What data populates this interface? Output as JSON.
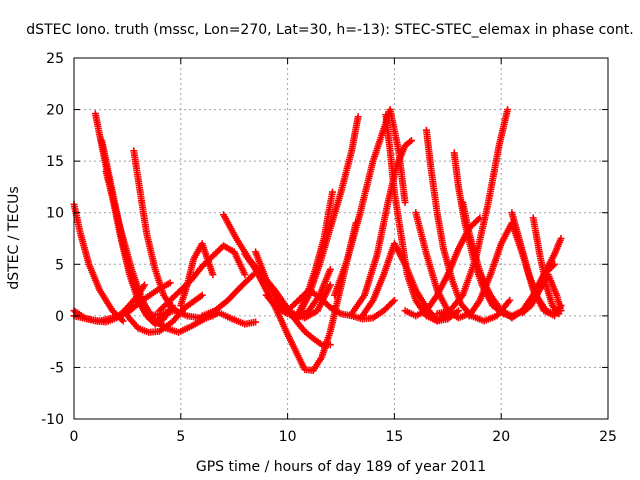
{
  "chart_data": {
    "type": "scatter",
    "title": "dSTEC Iono. truth (mssc, Lon=270, Lat=30, h=-13): STEC-STEC_elemax in phase cont.",
    "xlabel": "GPS time / hours of day 189 of year 2011",
    "ylabel": "dSTEC  / TECUs",
    "xlim": [
      0,
      25
    ],
    "ylim": [
      -10,
      25
    ],
    "xticks": [
      0,
      5,
      10,
      15,
      20,
      25
    ],
    "yticks": [
      -10,
      -5,
      0,
      5,
      10,
      15,
      20,
      25
    ],
    "grid": true,
    "marker": "+",
    "color": "#ff0000",
    "series": [
      {
        "x": [
          0.0,
          0.3,
          0.7,
          1.2,
          1.8,
          2.3
        ],
        "y": [
          10.8,
          8.0,
          5.0,
          2.5,
          0.5,
          -0.5
        ]
      },
      {
        "x": [
          0.0,
          0.5,
          1.0,
          1.5,
          2.0,
          2.5,
          3.0,
          3.3
        ],
        "y": [
          0.5,
          -0.2,
          -0.5,
          -0.6,
          -0.2,
          0.8,
          2.0,
          3.0
        ]
      },
      {
        "x": [
          0.0,
          0.6,
          1.2,
          1.8,
          2.5,
          3.2,
          3.9,
          4.5
        ],
        "y": [
          0.0,
          -0.3,
          -0.5,
          -0.2,
          0.3,
          1.5,
          2.5,
          3.2
        ]
      },
      {
        "x": [
          1.0,
          1.4,
          1.8,
          2.2,
          2.6,
          3.0,
          3.4,
          3.8,
          4.2,
          4.6
        ],
        "y": [
          19.6,
          15.5,
          11.5,
          7.5,
          4.0,
          1.5,
          0.0,
          -0.8,
          -0.3,
          1.0
        ]
      },
      {
        "x": [
          1.3,
          1.8,
          2.3,
          2.8,
          3.3,
          3.8,
          4.3
        ],
        "y": [
          17.0,
          12.0,
          7.0,
          3.0,
          0.5,
          -0.6,
          0.2
        ]
      },
      {
        "x": [
          1.5,
          2.1,
          2.7,
          3.2,
          3.7,
          4.2
        ],
        "y": [
          14.0,
          9.0,
          4.5,
          1.5,
          -0.3,
          -1.0
        ]
      },
      {
        "x": [
          2.5,
          3.0,
          3.5,
          4.0,
          4.6,
          5.2,
          6.0
        ],
        "y": [
          0.0,
          -1.2,
          -1.6,
          -1.5,
          -0.6,
          0.8,
          2.0
        ]
      },
      {
        "x": [
          2.8,
          3.1,
          3.4,
          3.8,
          4.2,
          4.6,
          5.0
        ],
        "y": [
          16.0,
          12.0,
          8.0,
          4.5,
          2.0,
          0.8,
          0.2
        ]
      },
      {
        "x": [
          3.4,
          3.8,
          4.3,
          4.9,
          5.5,
          6.1,
          6.8,
          7.4,
          8.0,
          8.5
        ],
        "y": [
          0.3,
          -0.5,
          -1.2,
          -1.6,
          -1.0,
          -0.3,
          0.3,
          -0.3,
          -0.8,
          -0.6
        ]
      },
      {
        "x": [
          3.5,
          4.1,
          4.7,
          5.3,
          5.9,
          6.5
        ],
        "y": [
          0.0,
          0.2,
          0.5,
          0.0,
          -0.2,
          0.0
        ]
      },
      {
        "x": [
          4.0,
          4.5,
          5.0,
          5.5,
          6.0,
          6.5,
          7.0,
          7.5,
          8.0
        ],
        "y": [
          0.5,
          1.5,
          2.5,
          3.5,
          4.8,
          5.8,
          6.8,
          6.2,
          4.0
        ]
      },
      {
        "x": [
          5.0,
          5.3,
          5.6,
          6.0,
          6.5
        ],
        "y": [
          1.0,
          3.0,
          5.5,
          7.0,
          4.0
        ]
      },
      {
        "x": [
          6.0,
          6.6,
          7.2,
          7.8,
          8.4
        ],
        "y": [
          0.0,
          0.5,
          1.5,
          2.8,
          4.0
        ]
      },
      {
        "x": [
          7.0,
          7.6,
          8.2,
          8.8,
          9.4,
          9.9,
          10.4,
          10.8,
          11.2,
          11.6,
          12.0
        ],
        "y": [
          9.8,
          7.5,
          5.5,
          4.0,
          2.5,
          1.0,
          -0.5,
          -1.5,
          -2.2,
          -2.8,
          -2.8
        ]
      },
      {
        "x": [
          8.0,
          8.5,
          9.0,
          9.5,
          10.0,
          10.4,
          10.8,
          11.2,
          11.6,
          12.0,
          12.4,
          12.8,
          13.2
        ],
        "y": [
          6.0,
          4.5,
          2.5,
          0.5,
          -1.8,
          -3.5,
          -5.2,
          -5.3,
          -4.0,
          -1.5,
          2.0,
          5.5,
          9.0
        ]
      },
      {
        "x": [
          8.5,
          9.0,
          9.6,
          10.2,
          10.8,
          11.4,
          12.0
        ],
        "y": [
          6.2,
          3.5,
          1.2,
          0.3,
          -0.2,
          0.5,
          3.0
        ]
      },
      {
        "x": [
          9.0,
          9.5,
          10.0,
          10.5,
          11.0,
          11.5,
          12.0
        ],
        "y": [
          2.0,
          0.8,
          0.2,
          -0.2,
          0.5,
          2.0,
          4.5
        ]
      },
      {
        "x": [
          10.0,
          10.5,
          11.0,
          11.5,
          12.0,
          12.5,
          13.0,
          13.5,
          14.0,
          14.5,
          15.0
        ],
        "y": [
          0.5,
          1.5,
          2.5,
          1.8,
          0.8,
          0.2,
          0.0,
          -0.3,
          -0.2,
          0.5,
          1.5
        ]
      },
      {
        "x": [
          10.5,
          10.9,
          11.3,
          11.7,
          12.1
        ],
        "y": [
          0.2,
          2.0,
          4.5,
          7.5,
          12.0
        ]
      },
      {
        "x": [
          10.5,
          11.0,
          11.5,
          12.0,
          12.5,
          13.0,
          13.3
        ],
        "y": [
          0.0,
          2.0,
          5.0,
          8.5,
          12.0,
          16.0,
          19.3
        ]
      },
      {
        "x": [
          12.2,
          12.8,
          13.4,
          14.0,
          14.4,
          14.8,
          15.2,
          15.5
        ],
        "y": [
          2.0,
          5.5,
          10.0,
          15.0,
          17.5,
          20.0,
          16.0,
          11.0
        ]
      },
      {
        "x": [
          13.0,
          13.6,
          14.2,
          14.7,
          15.1,
          15.5,
          15.8
        ],
        "y": [
          0.2,
          2.0,
          6.0,
          11.0,
          14.5,
          16.5,
          17.0
        ]
      },
      {
        "x": [
          13.5,
          14.0,
          14.5,
          15.0,
          15.5,
          16.0,
          16.5,
          17.0,
          17.5,
          18.0
        ],
        "y": [
          0.0,
          1.5,
          4.0,
          7.0,
          5.0,
          2.5,
          0.8,
          -0.5,
          -0.3,
          0.5
        ]
      },
      {
        "x": [
          14.6,
          14.8,
          15.0,
          15.3,
          15.6,
          16.0,
          16.5,
          17.0,
          17.5
        ],
        "y": [
          19.5,
          16.0,
          12.0,
          8.0,
          4.0,
          1.5,
          0.0,
          -0.5,
          0.3
        ]
      },
      {
        "x": [
          15.5,
          16.0,
          16.5,
          17.0,
          17.5,
          18.0,
          18.5,
          19.0
        ],
        "y": [
          0.5,
          0.0,
          0.5,
          2.0,
          4.0,
          6.5,
          8.5,
          9.5
        ]
      },
      {
        "x": [
          16.0,
          16.5,
          17.0,
          17.5,
          18.0,
          18.5
        ],
        "y": [
          10.0,
          6.0,
          2.5,
          0.5,
          -0.2,
          0.2
        ]
      },
      {
        "x": [
          16.5,
          16.7,
          17.0,
          17.3,
          17.7,
          18.1,
          18.6,
          19.2,
          19.8,
          20.4
        ],
        "y": [
          18.0,
          14.5,
          10.0,
          6.5,
          3.5,
          1.2,
          0.0,
          -0.5,
          0.0,
          1.5
        ]
      },
      {
        "x": [
          17.8,
          18.0,
          18.3,
          18.7,
          19.1,
          19.6,
          20.1
        ],
        "y": [
          15.8,
          12.5,
          9.0,
          5.5,
          3.0,
          1.0,
          0.2
        ]
      },
      {
        "x": [
          17.0,
          17.6,
          18.2,
          18.8,
          19.4,
          19.9,
          20.3
        ],
        "y": [
          0.2,
          0.5,
          2.0,
          5.5,
          11.0,
          16.5,
          20.0
        ]
      },
      {
        "x": [
          18.2,
          18.5,
          18.9,
          19.3,
          19.7,
          20.1,
          20.5
        ],
        "y": [
          11.0,
          8.0,
          5.0,
          2.5,
          1.0,
          0.2,
          0.0
        ]
      },
      {
        "x": [
          18.5,
          19.0,
          19.5,
          20.0,
          20.5,
          21.0,
          21.5,
          22.0,
          22.5
        ],
        "y": [
          0.0,
          1.5,
          4.0,
          7.0,
          9.0,
          6.0,
          2.5,
          0.5,
          0.0
        ]
      },
      {
        "x": [
          19.0,
          19.5,
          20.0,
          20.5,
          21.0,
          21.5,
          22.0,
          22.5
        ],
        "y": [
          4.0,
          2.0,
          0.5,
          -0.2,
          0.5,
          2.0,
          4.0,
          5.0
        ]
      },
      {
        "x": [
          20.0,
          20.5,
          21.0,
          21.5,
          22.0,
          22.5,
          22.8
        ],
        "y": [
          0.5,
          0.0,
          0.5,
          2.0,
          4.0,
          6.0,
          7.5
        ]
      },
      {
        "x": [
          20.5,
          20.9,
          21.3,
          21.7,
          22.1,
          22.5,
          22.8
        ],
        "y": [
          10.0,
          7.0,
          4.0,
          1.8,
          0.5,
          0.2,
          1.0
        ]
      },
      {
        "x": [
          21.0,
          21.4,
          21.8,
          22.2,
          22.6,
          22.8
        ],
        "y": [
          0.3,
          1.0,
          2.5,
          4.0,
          2.0,
          0.5
        ]
      },
      {
        "x": [
          21.5,
          21.8,
          22.1,
          22.4,
          22.7
        ],
        "y": [
          9.5,
          6.0,
          3.0,
          1.0,
          0.2
        ]
      }
    ]
  }
}
